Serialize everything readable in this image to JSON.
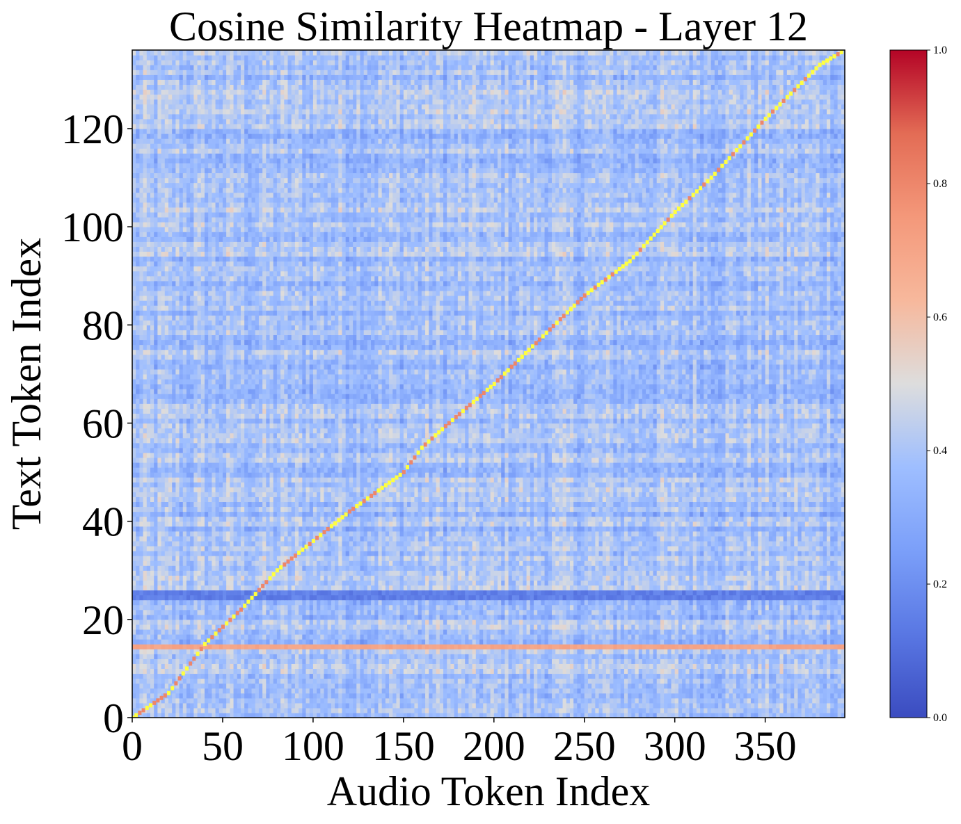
{
  "chart_data": {
    "type": "heatmap",
    "title": "Cosine Similarity Heatmap - Layer 12",
    "xlabel": "Audio Token Index",
    "ylabel": "Text Token Index",
    "colormap": "coolwarm",
    "xlim": [
      0,
      394
    ],
    "ylim": [
      0,
      136
    ],
    "x_ticks": [
      0,
      50,
      100,
      150,
      200,
      250,
      300,
      350
    ],
    "y_ticks": [
      0,
      20,
      40,
      60,
      80,
      100,
      120
    ],
    "colorbar": {
      "range": [
        0.0,
        1.0
      ],
      "ticks": [
        "0.0",
        "0.2",
        "0.4",
        "0.6",
        "0.8",
        "1.0"
      ]
    },
    "background_similarity_range": [
      0.2,
      0.6
    ],
    "strong_row": {
      "text_token": 14,
      "similarity": 0.7
    },
    "weak_rows": [
      {
        "text_token": 24,
        "similarity": 0.15
      },
      {
        "text_token": 25,
        "similarity": 0.15
      }
    ],
    "alignment_path": {
      "description": "diagonal of max similarity",
      "color": "#ffff40",
      "points": [
        [
          0,
          0
        ],
        [
          20,
          5
        ],
        [
          40,
          15
        ],
        [
          60,
          22
        ],
        [
          80,
          30
        ],
        [
          100,
          36
        ],
        [
          120,
          42
        ],
        [
          150,
          50
        ],
        [
          160,
          55
        ],
        [
          175,
          60
        ],
        [
          200,
          68
        ],
        [
          225,
          77
        ],
        [
          250,
          86
        ],
        [
          275,
          93
        ],
        [
          300,
          103
        ],
        [
          320,
          110
        ],
        [
          350,
          122
        ],
        [
          380,
          133
        ],
        [
          394,
          136
        ]
      ]
    }
  }
}
